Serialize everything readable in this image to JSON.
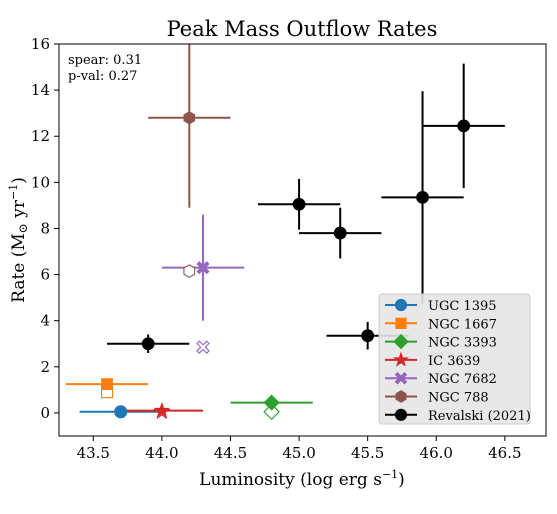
{
  "chart_data": {
    "type": "scatter",
    "title": "Peak Mass Outflow Rates",
    "xlabel": "Luminosity (log erg s⁻¹)",
    "ylabel": "Rate (M⊙ yr⁻¹)",
    "xlim": [
      43.25,
      46.8
    ],
    "ylim": [
      -1.0,
      16.0
    ],
    "xticks": [
      "43.5",
      "44.0",
      "44.5",
      "45.0",
      "45.5",
      "46.0",
      "46.5"
    ],
    "yticks": [
      "0",
      "2",
      "4",
      "6",
      "8",
      "10",
      "12",
      "14",
      "16"
    ],
    "grid": false,
    "legend_position": "lower-right",
    "annotation": {
      "line1": "spear: 0.31",
      "line2": "p-val: 0.27"
    },
    "series": [
      {
        "name": "UGC 1395",
        "color": "#1f77b4",
        "marker": "circle",
        "points": [
          {
            "x": 43.7,
            "y": 0.05,
            "xerr": [
              0.3,
              0.3
            ],
            "yerr": [
              0,
              0
            ]
          }
        ],
        "hollow": [
          {
            "x": 43.7,
            "y": 0.05
          }
        ]
      },
      {
        "name": "NGC 1667",
        "color": "#ff7f0e",
        "marker": "square",
        "points": [
          {
            "x": 43.6,
            "y": 1.25,
            "xerr": [
              0.3,
              0.3
            ],
            "yerr": [
              0,
              0
            ]
          }
        ],
        "hollow": [
          {
            "x": 43.6,
            "y": 0.9
          }
        ]
      },
      {
        "name": "NGC 3393",
        "color": "#2ca02c",
        "marker": "diamond",
        "points": [
          {
            "x": 44.8,
            "y": 0.45,
            "xerr": [
              0.3,
              0.3
            ],
            "yerr": [
              0,
              0
            ]
          }
        ],
        "hollow": [
          {
            "x": 44.8,
            "y": 0.05
          }
        ]
      },
      {
        "name": "IC  3639",
        "color": "#d62728",
        "marker": "star",
        "points": [
          {
            "x": 44.0,
            "y": 0.1,
            "xerr": [
              0.3,
              0.3
            ],
            "yerr": [
              0,
              0
            ]
          }
        ],
        "hollow": [
          {
            "x": 44.0,
            "y": 0.05
          }
        ]
      },
      {
        "name": "NGC 7682",
        "color": "#9467bd",
        "marker": "cross",
        "points": [
          {
            "x": 44.3,
            "y": 6.3,
            "xerr": [
              0.3,
              0.3
            ],
            "yerr": [
              2.3,
              2.3
            ]
          }
        ],
        "hollow": [
          {
            "x": 44.3,
            "y": 2.85
          }
        ]
      },
      {
        "name": "NGC  788",
        "color": "#8c564b",
        "marker": "hexagon",
        "points": [
          {
            "x": 44.2,
            "y": 12.8,
            "xerr": [
              0.3,
              0.3
            ],
            "yerr": [
              3.9,
              3.9
            ]
          }
        ],
        "hollow": [
          {
            "x": 44.2,
            "y": 6.15
          }
        ]
      },
      {
        "name": "Revalski (2021)",
        "color": "#000000",
        "marker": "circle",
        "points": [
          {
            "x": 43.9,
            "y": 3.0,
            "xerr": [
              0.3,
              0.3
            ],
            "yerr": [
              0.4,
              0.4
            ]
          },
          {
            "x": 45.0,
            "y": 9.05,
            "xerr": [
              0.3,
              0.3
            ],
            "yerr": [
              1.1,
              1.1
            ]
          },
          {
            "x": 45.3,
            "y": 7.8,
            "xerr": [
              0.3,
              0.3
            ],
            "yerr": [
              1.1,
              1.1
            ]
          },
          {
            "x": 45.5,
            "y": 3.35,
            "xerr": [
              0.3,
              0.3
            ],
            "yerr": [
              0.6,
              0.6
            ]
          },
          {
            "x": 45.9,
            "y": 9.35,
            "xerr": [
              0.3,
              0.3
            ],
            "yerr": [
              4.6,
              4.6
            ]
          },
          {
            "x": 46.2,
            "y": 12.45,
            "xerr": [
              0.3,
              0.3
            ],
            "yerr": [
              2.7,
              2.7
            ]
          }
        ],
        "hollow": []
      }
    ]
  }
}
